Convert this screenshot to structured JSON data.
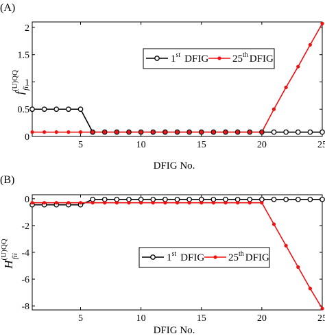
{
  "chart_data": [
    {
      "type": "line",
      "panel_label": "(A)",
      "xlabel": "DFIG No.",
      "ylabel_main": "f",
      "ylabel_sup": "(U)QQ",
      "ylabel_sub": "fi",
      "xlim": [
        1,
        25
      ],
      "ylim": [
        0,
        2.1
      ],
      "xticks": [
        5,
        10,
        15,
        20,
        25
      ],
      "yticks": [
        0,
        0.5,
        1,
        1.5,
        2
      ],
      "ytick_labels": [
        "0",
        "0.5",
        "1",
        "1.5",
        "2"
      ],
      "grid": false,
      "legend_position": "upper-middle",
      "x": [
        1,
        2,
        3,
        4,
        5,
        6,
        7,
        8,
        9,
        10,
        11,
        12,
        13,
        14,
        15,
        16,
        17,
        18,
        19,
        20,
        21,
        22,
        23,
        24,
        25
      ],
      "series": [
        {
          "legend_num": "1",
          "legend_sup": "st",
          "legend_rest": "DFIG",
          "color": "#000000",
          "marker": "open-circle",
          "values": [
            0.5,
            0.5,
            0.5,
            0.5,
            0.5,
            0.08,
            0.08,
            0.08,
            0.08,
            0.08,
            0.08,
            0.08,
            0.08,
            0.08,
            0.08,
            0.08,
            0.08,
            0.08,
            0.08,
            0.08,
            0.08,
            0.08,
            0.08,
            0.08,
            0.08
          ]
        },
        {
          "legend_num": "25",
          "legend_sup": "th",
          "legend_rest": "DFIG",
          "color": "#ee1111",
          "marker": "filled-dot",
          "values": [
            0.08,
            0.08,
            0.08,
            0.08,
            0.08,
            0.08,
            0.08,
            0.08,
            0.08,
            0.08,
            0.08,
            0.08,
            0.08,
            0.08,
            0.08,
            0.08,
            0.08,
            0.08,
            0.08,
            0.08,
            0.5,
            0.9,
            1.28,
            1.68,
            2.07
          ]
        }
      ]
    },
    {
      "type": "line",
      "panel_label": "(B)",
      "xlabel": "DFIG No.",
      "ylabel_main": "H",
      "ylabel_sup": "(U)QQ",
      "ylabel_sub": "fii",
      "xlim": [
        1,
        25
      ],
      "ylim": [
        -8.3,
        0.3
      ],
      "xticks": [
        5,
        10,
        15,
        20,
        25
      ],
      "yticks": [
        0,
        -2,
        -4,
        -6,
        -8
      ],
      "ytick_labels": [
        "0",
        "-2",
        "-4",
        "-6",
        "-8"
      ],
      "grid": false,
      "legend_position": "middle",
      "x": [
        1,
        2,
        3,
        4,
        5,
        6,
        7,
        8,
        9,
        10,
        11,
        12,
        13,
        14,
        15,
        16,
        17,
        18,
        19,
        20,
        21,
        22,
        23,
        24,
        25
      ],
      "series": [
        {
          "legend_num": "1",
          "legend_sup": "st",
          "legend_rest": "DFIG",
          "color": "#000000",
          "marker": "open-circle",
          "values": [
            -0.45,
            -0.45,
            -0.45,
            -0.45,
            -0.45,
            -0.05,
            -0.05,
            -0.05,
            -0.05,
            -0.05,
            -0.05,
            -0.05,
            -0.05,
            -0.05,
            -0.05,
            -0.05,
            -0.05,
            -0.05,
            -0.05,
            -0.05,
            -0.05,
            -0.05,
            -0.05,
            -0.05,
            -0.05
          ]
        },
        {
          "legend_num": "25",
          "legend_sup": "th",
          "legend_rest": "DFIG",
          "color": "#ee1111",
          "marker": "filled-dot",
          "values": [
            -0.3,
            -0.3,
            -0.3,
            -0.3,
            -0.3,
            -0.3,
            -0.3,
            -0.3,
            -0.3,
            -0.3,
            -0.3,
            -0.3,
            -0.3,
            -0.3,
            -0.3,
            -0.3,
            -0.3,
            -0.3,
            -0.3,
            -0.3,
            -1.9,
            -3.5,
            -5.1,
            -6.7,
            -8.2
          ]
        }
      ]
    }
  ]
}
